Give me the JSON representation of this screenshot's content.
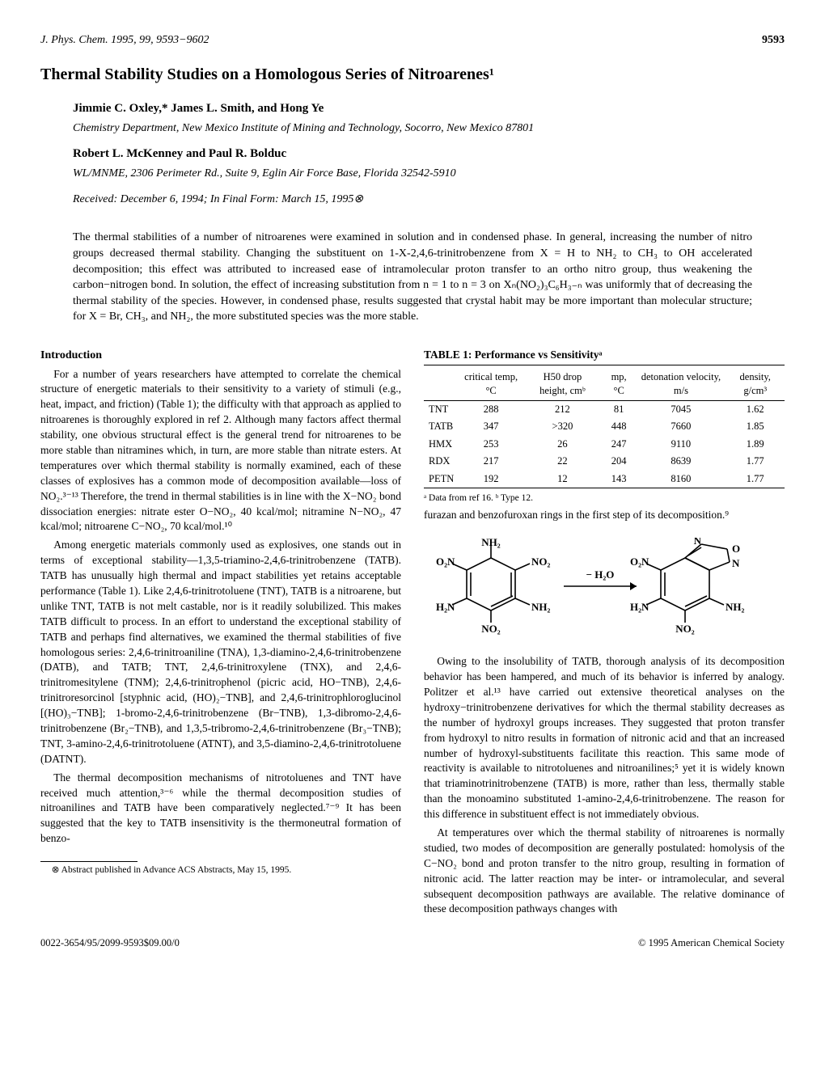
{
  "header": {
    "journal": "J. Phys. Chem. 1995, 99, 9593−9602",
    "page": "9593"
  },
  "title": "Thermal Stability Studies on a Homologous Series of Nitroarenes¹",
  "authorBlocks": [
    {
      "authors": "Jimmie C. Oxley,* James L. Smith, and Hong Ye",
      "affiliation": "Chemistry Department, New Mexico Institute of Mining and Technology, Socorro, New Mexico 87801"
    },
    {
      "authors": "Robert L. McKenney and Paul R. Bolduc",
      "affiliation": "WL/MNME, 2306 Perimeter Rd., Suite 9, Eglin Air Force Base, Florida 32542-5910"
    }
  ],
  "received": "Received: December 6, 1994; In Final Form: March 15, 1995⊗",
  "abstract": "The thermal stabilities of a number of nitroarenes were examined in solution and in condensed phase. In general, increasing the number of nitro groups decreased thermal stability. Changing the substituent on 1-X-2,4,6-trinitrobenzene from X = H to NH₂ to CH₃ to OH accelerated decomposition; this effect was attributed to increased ease of intramolecular proton transfer to an ortho nitro group, thus weakening the carbon−nitrogen bond. In solution, the effect of increasing substitution from n = 1 to n = 3 on Xₙ(NO₂)₃C₆H₃₋ₙ was uniformly that of decreasing the thermal stability of the species. However, in condensed phase, results suggested that crystal habit may be more important than molecular structure; for X = Br, CH₃, and NH₂, the more substituted species was the more stable.",
  "leftColumn": {
    "introHead": "Introduction",
    "paras": [
      "For a number of years researchers have attempted to correlate the chemical structure of energetic materials to their sensitivity to a variety of stimuli (e.g., heat, impact, and friction) (Table 1); the difficulty with that approach as applied to nitroarenes is thoroughly explored in ref 2. Although many factors affect thermal stability, one obvious structural effect is the general trend for nitroarenes to be more stable than nitramines which, in turn, are more stable than nitrate esters. At temperatures over which thermal stability is normally examined, each of these classes of explosives has a common mode of decomposition available—loss of NO₂.³⁻¹³ Therefore, the trend in thermal stabilities is in line with the X−NO₂ bond dissociation energies: nitrate ester O−NO₂, 40 kcal/mol; nitramine N−NO₂, 47 kcal/mol; nitroarene C−NO₂, 70 kcal/mol.¹⁰",
      "Among energetic materials commonly used as explosives, one stands out in terms of exceptional stability—1,3,5-triamino-2,4,6-trinitrobenzene (TATB). TATB has unusually high thermal and impact stabilities yet retains acceptable performance (Table 1). Like 2,4,6-trinitrotoluene (TNT), TATB is a nitroarene, but unlike TNT, TATB is not melt castable, nor is it readily solubilized. This makes TATB difficult to process. In an effort to understand the exceptional stability of TATB and perhaps find alternatives, we examined the thermal stabilities of five homologous series: 2,4,6-trinitroaniline (TNA), 1,3-diamino-2,4,6-trinitrobenzene (DATB), and TATB; TNT, 2,4,6-trinitroxylene (TNX), and 2,4,6-trinitromesitylene (TNM); 2,4,6-trinitrophenol (picric acid, HO−TNB), 2,4,6-trinitroresorcinol [styphnic acid, (HO)₂−TNB], and 2,4,6-trinitrophloroglucinol [(HO)₃−TNB]; 1-bromo-2,4,6-trinitrobenzene (Br−TNB), 1,3-dibromo-2,4,6-trinitrobenzene (Br₂−TNB), and 1,3,5-tribromo-2,4,6-trinitrobenzene (Br₃−TNB); TNT, 3-amino-2,4,6-trinitrotoluene (ATNT), and 3,5-diamino-2,4,6-trinitrotoluene (DATNT).",
      "The thermal decomposition mechanisms of nitrotoluenes and TNT have received much attention,³⁻⁶ while the thermal decomposition studies of nitroanilines and TATB have been comparatively neglected.⁷⁻⁹ It has been suggested that the key to TATB insensitivity is the thermoneutral formation of benzo-"
    ],
    "footnote": "⊗ Abstract published in Advance ACS Abstracts, May 15, 1995."
  },
  "rightColumn": {
    "table": {
      "caption": "TABLE 1:  Performance vs Sensitivityᵃ",
      "columns": [
        "",
        "critical temp, °C",
        "H50 drop height, cmᵇ",
        "mp, °C",
        "detonation velocity, m/s",
        "density, g/cm³"
      ],
      "rows": [
        [
          "TNT",
          "288",
          "212",
          "81",
          "7045",
          "1.62"
        ],
        [
          "TATB",
          "347",
          ">320",
          "448",
          "7660",
          "1.85"
        ],
        [
          "HMX",
          "253",
          "26",
          "247",
          "9110",
          "1.89"
        ],
        [
          "RDX",
          "217",
          "22",
          "204",
          "8639",
          "1.77"
        ],
        [
          "PETN",
          "192",
          "12",
          "143",
          "8160",
          "1.77"
        ]
      ],
      "note": "ᵃ Data from ref 16. ᵇ Type 12.",
      "font_size": 12.5,
      "border_color": "#000000"
    },
    "parasTop": [
      "furazan and benzofuroxan rings in the first step of its decomposition.⁹"
    ],
    "diagram": {
      "left_labels": [
        "NH₂",
        "O₂N",
        "NO₂",
        "H₂N",
        "NH₂",
        "NO₂"
      ],
      "arrow_label": "− H₂O",
      "right_labels": [
        "N",
        "O",
        "O₂N",
        "N",
        "H₂N",
        "NH₂",
        "NO₂"
      ],
      "stroke": "#000000",
      "stroke_width": 1.6,
      "font_family": "Times",
      "font_weight": "bold"
    },
    "parasBottom": [
      "Owing to the insolubility of TATB, thorough analysis of its decomposition behavior has been hampered, and much of its behavior is inferred by analogy. Politzer et al.¹³ have carried out extensive theoretical analyses on the hydroxy−trinitrobenzene derivatives for which the thermal stability decreases as the number of hydroxyl groups increases. They suggested that proton transfer from hydroxyl to nitro results in formation of nitronic acid and that an increased number of hydroxyl-substituents facilitate this reaction. This same mode of reactivity is available to nitrotoluenes and nitroanilines;⁵ yet it is widely known that triaminotrinitrobenzene (TATB) is more, rather than less, thermally stable than the monoamino substituted 1-amino-2,4,6-trinitrobenzene. The reason for this difference in substituent effect is not immediately obvious.",
      "At temperatures over which the thermal stability of nitroarenes is normally studied, two modes of decomposition are generally postulated: homolysis of the C−NO₂ bond and proton transfer to the nitro group, resulting in formation of nitronic acid. The latter reaction may be inter- or intramolecular, and several subsequent decomposition pathways are available. The relative dominance of these decomposition pathways changes with"
    ]
  },
  "footer": {
    "left": "0022-3654/95/2099-9593$09.00/0",
    "right": "© 1995 American Chemical Society"
  },
  "styling": {
    "body_font": "Times",
    "body_size_pt": 10,
    "title_size_pt": 15,
    "background": "#ffffff",
    "text_color": "#000000"
  }
}
